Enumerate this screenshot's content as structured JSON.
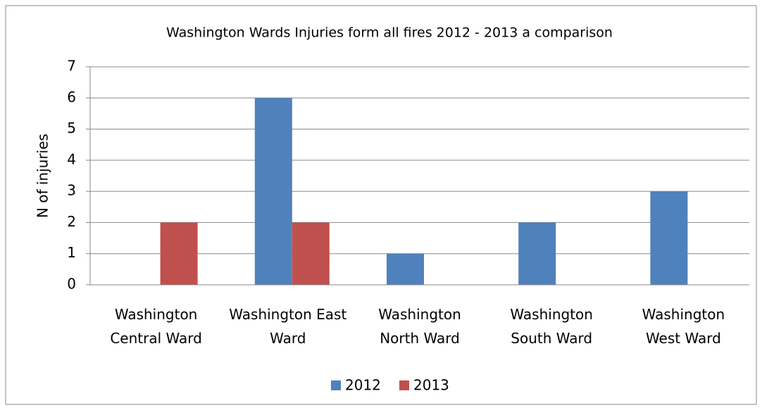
{
  "chart_data": {
    "type": "bar",
    "title": "Washington Wards Injuries form all fires 2012 - 2013 a comparison",
    "y_label": "N of injuries",
    "categories": [
      "Washington\nCentral Ward",
      "Washington East\nWard",
      "Washington\nNorth Ward",
      "Washington\nSouth Ward",
      "Washington\nWest Ward"
    ],
    "series": [
      {
        "name": "2012",
        "color": "#4f81bd",
        "values": [
          0,
          6,
          1,
          2,
          3
        ]
      },
      {
        "name": "2013",
        "color": "#c0504d",
        "values": [
          2,
          2,
          0,
          0,
          0
        ]
      }
    ],
    "ylim": [
      0,
      7
    ],
    "yticks": [
      0,
      1,
      2,
      3,
      4,
      5,
      6,
      7
    ],
    "grid": true,
    "legend": "bottom"
  }
}
